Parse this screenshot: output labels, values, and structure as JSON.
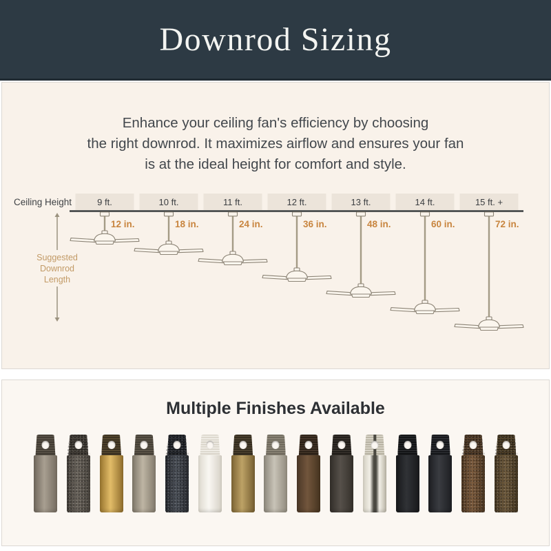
{
  "header": {
    "title": "Downrod Sizing"
  },
  "intro": {
    "text": "Enhance your ceiling fan's efficiency by choosing\nthe right downrod. It maximizes airflow and ensures your fan\nis at the ideal height for comfort and style."
  },
  "diagram": {
    "ceiling_label": "Ceiling Height",
    "side_label_lines": [
      "Suggested",
      "Downrod",
      "Length"
    ],
    "columns": [
      {
        "ceiling_height": "9 ft.",
        "downrod_length": "12 in."
      },
      {
        "ceiling_height": "10 ft.",
        "downrod_length": "18 in."
      },
      {
        "ceiling_height": "11 ft.",
        "downrod_length": "24 in."
      },
      {
        "ceiling_height": "12 ft.",
        "downrod_length": "36 in."
      },
      {
        "ceiling_height": "13 ft.",
        "downrod_length": "48 in."
      },
      {
        "ceiling_height": "14 ft.",
        "downrod_length": "60 in."
      },
      {
        "ceiling_height": "15 ft. +",
        "downrod_length": "72 in."
      }
    ]
  },
  "finishes": {
    "title": "Multiple Finishes Available",
    "swatches": [
      {
        "name": "brushed-pewter",
        "body": [
          "#6f675c",
          "#a89f91",
          "#756c60"
        ],
        "threads": [
          "#3e3830",
          "#5a5348"
        ]
      },
      {
        "name": "graphite",
        "body": [
          "#46413b",
          "#6a645c",
          "#49443d"
        ],
        "threads": [
          "#2e2a25",
          "#4a453e"
        ],
        "textured": true
      },
      {
        "name": "brass",
        "body": [
          "#97742e",
          "#e2bc68",
          "#8f6d2c"
        ],
        "threads": [
          "#352c1e",
          "#55482f"
        ]
      },
      {
        "name": "antique-pewter",
        "body": [
          "#7d7668",
          "#beb5a4",
          "#827a6c"
        ],
        "threads": [
          "#413c33",
          "#5d564a"
        ]
      },
      {
        "name": "midnight",
        "body": [
          "#26292e",
          "#4b5058",
          "#282b30"
        ],
        "threads": [
          "#16181b",
          "#2b2e34"
        ],
        "textured": true
      },
      {
        "name": "matte-white",
        "body": [
          "#dedacf",
          "#f9f7f2",
          "#d6d1c6"
        ],
        "threads": [
          "#d9d4c9",
          "#efece5"
        ]
      },
      {
        "name": "aged-brass",
        "body": [
          "#7c6434",
          "#bda266",
          "#755e30"
        ],
        "threads": [
          "#2f281b",
          "#4c4230"
        ]
      },
      {
        "name": "brushed-nickel",
        "body": [
          "#8d887c",
          "#c8c3b7",
          "#918b7e"
        ],
        "threads": [
          "#6b665a",
          "#8b8577"
        ]
      },
      {
        "name": "oil-rubbed-bronze",
        "body": [
          "#4a3727",
          "#72563c",
          "#45331f"
        ],
        "threads": [
          "#271d13",
          "#45362a"
        ]
      },
      {
        "name": "espresso",
        "body": [
          "#322e29",
          "#56504a",
          "#34302a"
        ],
        "threads": [
          "#1d1a16",
          "#38332d"
        ]
      },
      {
        "name": "polished-nickel",
        "body": [
          "#d4d0c2",
          "#f2efe7",
          "#b9b4a5"
        ],
        "stripe": "#4b4942",
        "threads": [
          "#b4af9f",
          "#dad6c9"
        ]
      },
      {
        "name": "matte-black",
        "body": [
          "#17181a",
          "#303236",
          "#18191b"
        ],
        "threads": [
          "#0e0f10",
          "#27282b"
        ]
      },
      {
        "name": "satin-black",
        "body": [
          "#1c1d21",
          "#3a3c41",
          "#1d1e22"
        ],
        "threads": [
          "#121316",
          "#2c2e33"
        ]
      },
      {
        "name": "weathered-copper",
        "body": [
          "#4e3823",
          "#7d5c3e",
          "#4a3520"
        ],
        "threads": [
          "#38281a",
          "#5a442e"
        ],
        "textured": true
      },
      {
        "name": "aged-bronze",
        "body": [
          "#463823",
          "#6e5a3d",
          "#423520"
        ],
        "threads": [
          "#332818",
          "#54452c"
        ],
        "textured": true
      }
    ]
  },
  "colors": {
    "header_bg": "#2d3a44",
    "panel_bg": "#f9f2ea",
    "panel2_bg": "#fbf7f2",
    "accent_orange": "#c8853f",
    "tan_label": "#c29a66",
    "box_fill": "#ece4da",
    "box_text": "#3b3e41",
    "line_dark": "#393c3e",
    "rod_line": "#a49b85",
    "fan_outline": "#8b8375",
    "fan_fill": "#fbf6ee",
    "dimension_line": "#9b927f"
  }
}
